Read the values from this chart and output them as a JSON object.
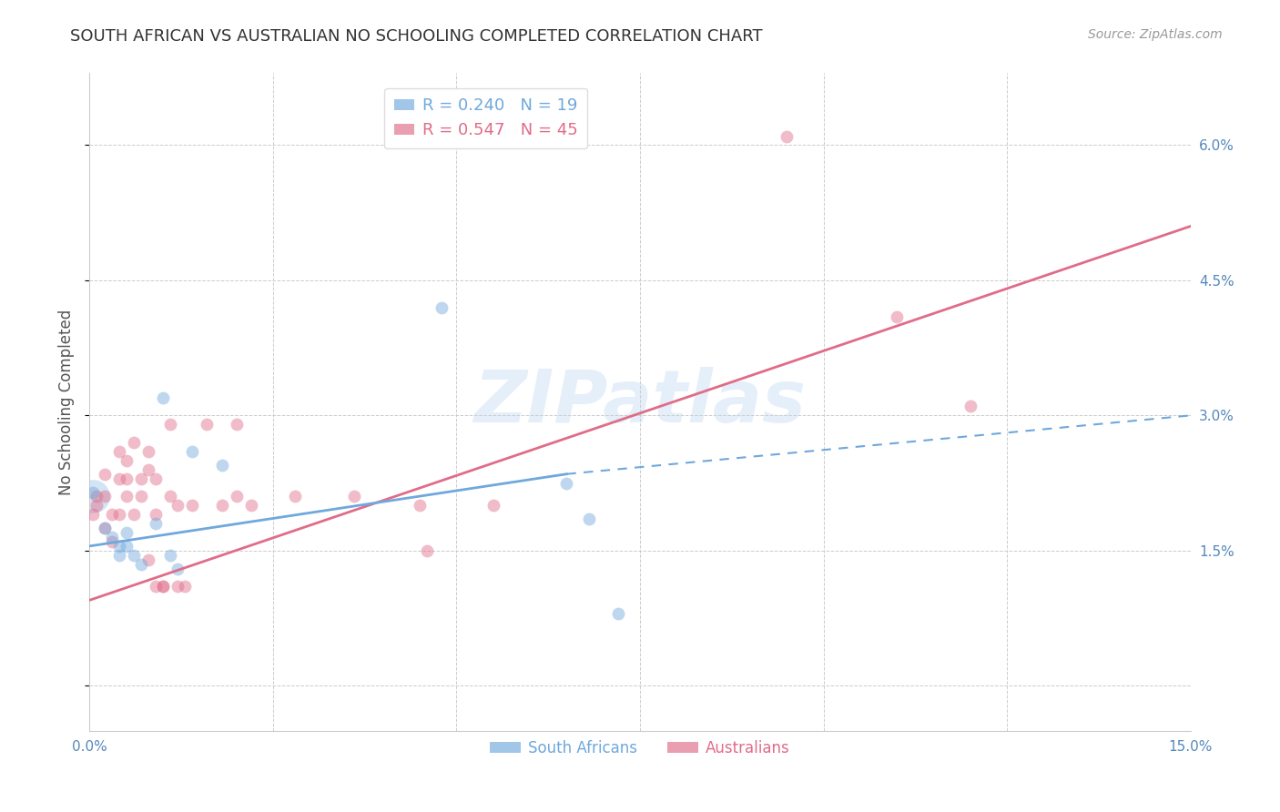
{
  "title": "SOUTH AFRICAN VS AUSTRALIAN NO SCHOOLING COMPLETED CORRELATION CHART",
  "source": "Source: ZipAtlas.com",
  "ylabel": "No Schooling Completed",
  "x_min": 0.0,
  "x_max": 0.15,
  "y_min": -0.005,
  "y_max": 0.068,
  "x_ticks": [
    0.0,
    0.025,
    0.05,
    0.075,
    0.1,
    0.125,
    0.15
  ],
  "x_tick_labels": [
    "0.0%",
    "",
    "",
    "",
    "",
    "",
    "15.0%"
  ],
  "y_ticks": [
    0.0,
    0.015,
    0.03,
    0.045,
    0.06
  ],
  "y_tick_labels_right": [
    "",
    "1.5%",
    "3.0%",
    "4.5%",
    "6.0%"
  ],
  "legend_entries": [
    {
      "label": "R = 0.240   N = 19",
      "color": "#6fa8dc"
    },
    {
      "label": "R = 0.547   N = 45",
      "color": "#e06c88"
    }
  ],
  "legend_labels_bottom": [
    "South Africans",
    "Australians"
  ],
  "legend_colors_bottom": [
    "#6fa8dc",
    "#e06c88"
  ],
  "watermark": "ZIPatlas",
  "sa_color": "#6fa8dc",
  "au_color": "#e06c88",
  "sa_points": [
    [
      0.0005,
      0.0215
    ],
    [
      0.002,
      0.0175
    ],
    [
      0.003,
      0.0165
    ],
    [
      0.004,
      0.0155
    ],
    [
      0.004,
      0.0145
    ],
    [
      0.005,
      0.017
    ],
    [
      0.005,
      0.0155
    ],
    [
      0.006,
      0.0145
    ],
    [
      0.007,
      0.0135
    ],
    [
      0.009,
      0.018
    ],
    [
      0.01,
      0.032
    ],
    [
      0.011,
      0.0145
    ],
    [
      0.012,
      0.013
    ],
    [
      0.014,
      0.026
    ],
    [
      0.018,
      0.0245
    ],
    [
      0.048,
      0.042
    ],
    [
      0.065,
      0.0225
    ],
    [
      0.068,
      0.0185
    ],
    [
      0.072,
      0.008
    ]
  ],
  "au_points": [
    [
      0.0005,
      0.019
    ],
    [
      0.001,
      0.021
    ],
    [
      0.001,
      0.02
    ],
    [
      0.002,
      0.0175
    ],
    [
      0.002,
      0.0235
    ],
    [
      0.002,
      0.021
    ],
    [
      0.003,
      0.019
    ],
    [
      0.003,
      0.016
    ],
    [
      0.004,
      0.026
    ],
    [
      0.004,
      0.023
    ],
    [
      0.004,
      0.019
    ],
    [
      0.005,
      0.025
    ],
    [
      0.005,
      0.023
    ],
    [
      0.005,
      0.021
    ],
    [
      0.006,
      0.019
    ],
    [
      0.006,
      0.027
    ],
    [
      0.007,
      0.023
    ],
    [
      0.007,
      0.021
    ],
    [
      0.008,
      0.014
    ],
    [
      0.008,
      0.026
    ],
    [
      0.008,
      0.024
    ],
    [
      0.009,
      0.019
    ],
    [
      0.009,
      0.011
    ],
    [
      0.009,
      0.023
    ],
    [
      0.01,
      0.011
    ],
    [
      0.01,
      0.011
    ],
    [
      0.011,
      0.029
    ],
    [
      0.011,
      0.021
    ],
    [
      0.012,
      0.02
    ],
    [
      0.012,
      0.011
    ],
    [
      0.013,
      0.011
    ],
    [
      0.014,
      0.02
    ],
    [
      0.016,
      0.029
    ],
    [
      0.018,
      0.02
    ],
    [
      0.02,
      0.029
    ],
    [
      0.02,
      0.021
    ],
    [
      0.022,
      0.02
    ],
    [
      0.028,
      0.021
    ],
    [
      0.036,
      0.021
    ],
    [
      0.045,
      0.02
    ],
    [
      0.046,
      0.015
    ],
    [
      0.055,
      0.02
    ],
    [
      0.095,
      0.061
    ],
    [
      0.11,
      0.041
    ],
    [
      0.12,
      0.031
    ]
  ],
  "sa_line_solid": {
    "x0": 0.0,
    "y0": 0.0155,
    "x1": 0.065,
    "y1": 0.0235
  },
  "sa_line_dash": {
    "x0": 0.065,
    "y0": 0.0235,
    "x1": 0.15,
    "y1": 0.03
  },
  "au_line": {
    "x0": 0.0,
    "y0": 0.0095,
    "x1": 0.15,
    "y1": 0.051
  },
  "background_color": "#ffffff",
  "grid_color": "#cccccc",
  "title_color": "#333333",
  "tick_label_color": "#5588bb",
  "marker_size": 100
}
